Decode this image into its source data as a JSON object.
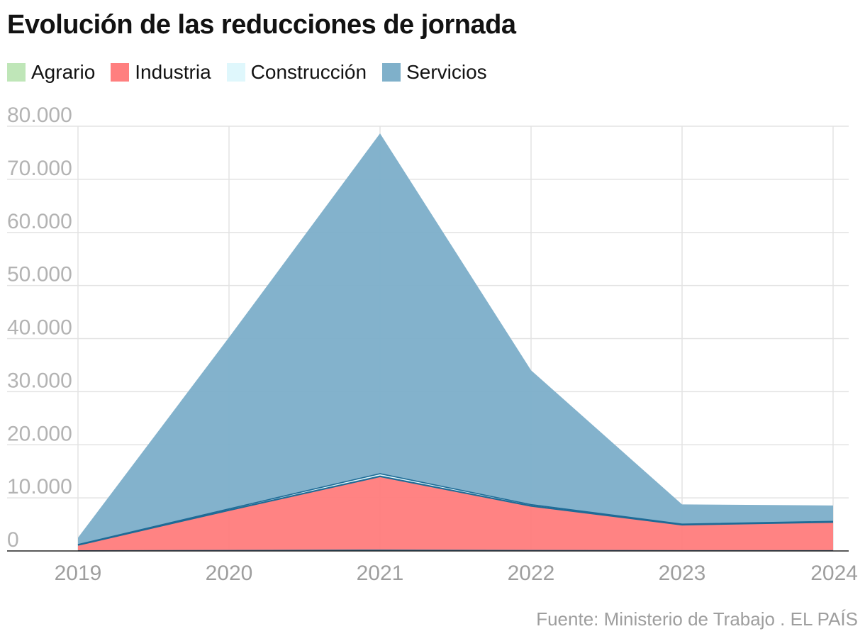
{
  "title": "Evolución de las reducciones de jornada",
  "source": "Fuente: Ministerio de Trabajo . EL PAÍS",
  "chart_data": {
    "type": "area",
    "stacked": true,
    "title": "Evolución de las reducciones de jornada",
    "x": [
      "2019",
      "2020",
      "2021",
      "2022",
      "2023",
      "2024"
    ],
    "ylim": [
      0,
      80000
    ],
    "yticks": [
      0,
      10000,
      20000,
      30000,
      40000,
      50000,
      60000,
      70000,
      80000
    ],
    "ytick_labels": [
      "0",
      "10.000",
      "20.000",
      "30.000",
      "40.000",
      "50.000",
      "60.000",
      "70.000",
      "80.000"
    ],
    "grid": true,
    "legend_position": "top-left",
    "series": [
      {
        "name": "Agrario",
        "color": "#bfe6b8",
        "values": [
          20,
          80,
          150,
          80,
          40,
          40
        ]
      },
      {
        "name": "Industria",
        "color": "#ff7f7f",
        "values": [
          1100,
          7600,
          13900,
          8400,
          4900,
          5400
        ]
      },
      {
        "name": "Construcción",
        "color": "#dff7fc",
        "values": [
          80,
          250,
          500,
          250,
          120,
          130
        ]
      },
      {
        "name": "Servicios",
        "color": "#7fb0ca",
        "values": [
          1300,
          32300,
          64100,
          25300,
          3700,
          3000
        ]
      }
    ]
  }
}
